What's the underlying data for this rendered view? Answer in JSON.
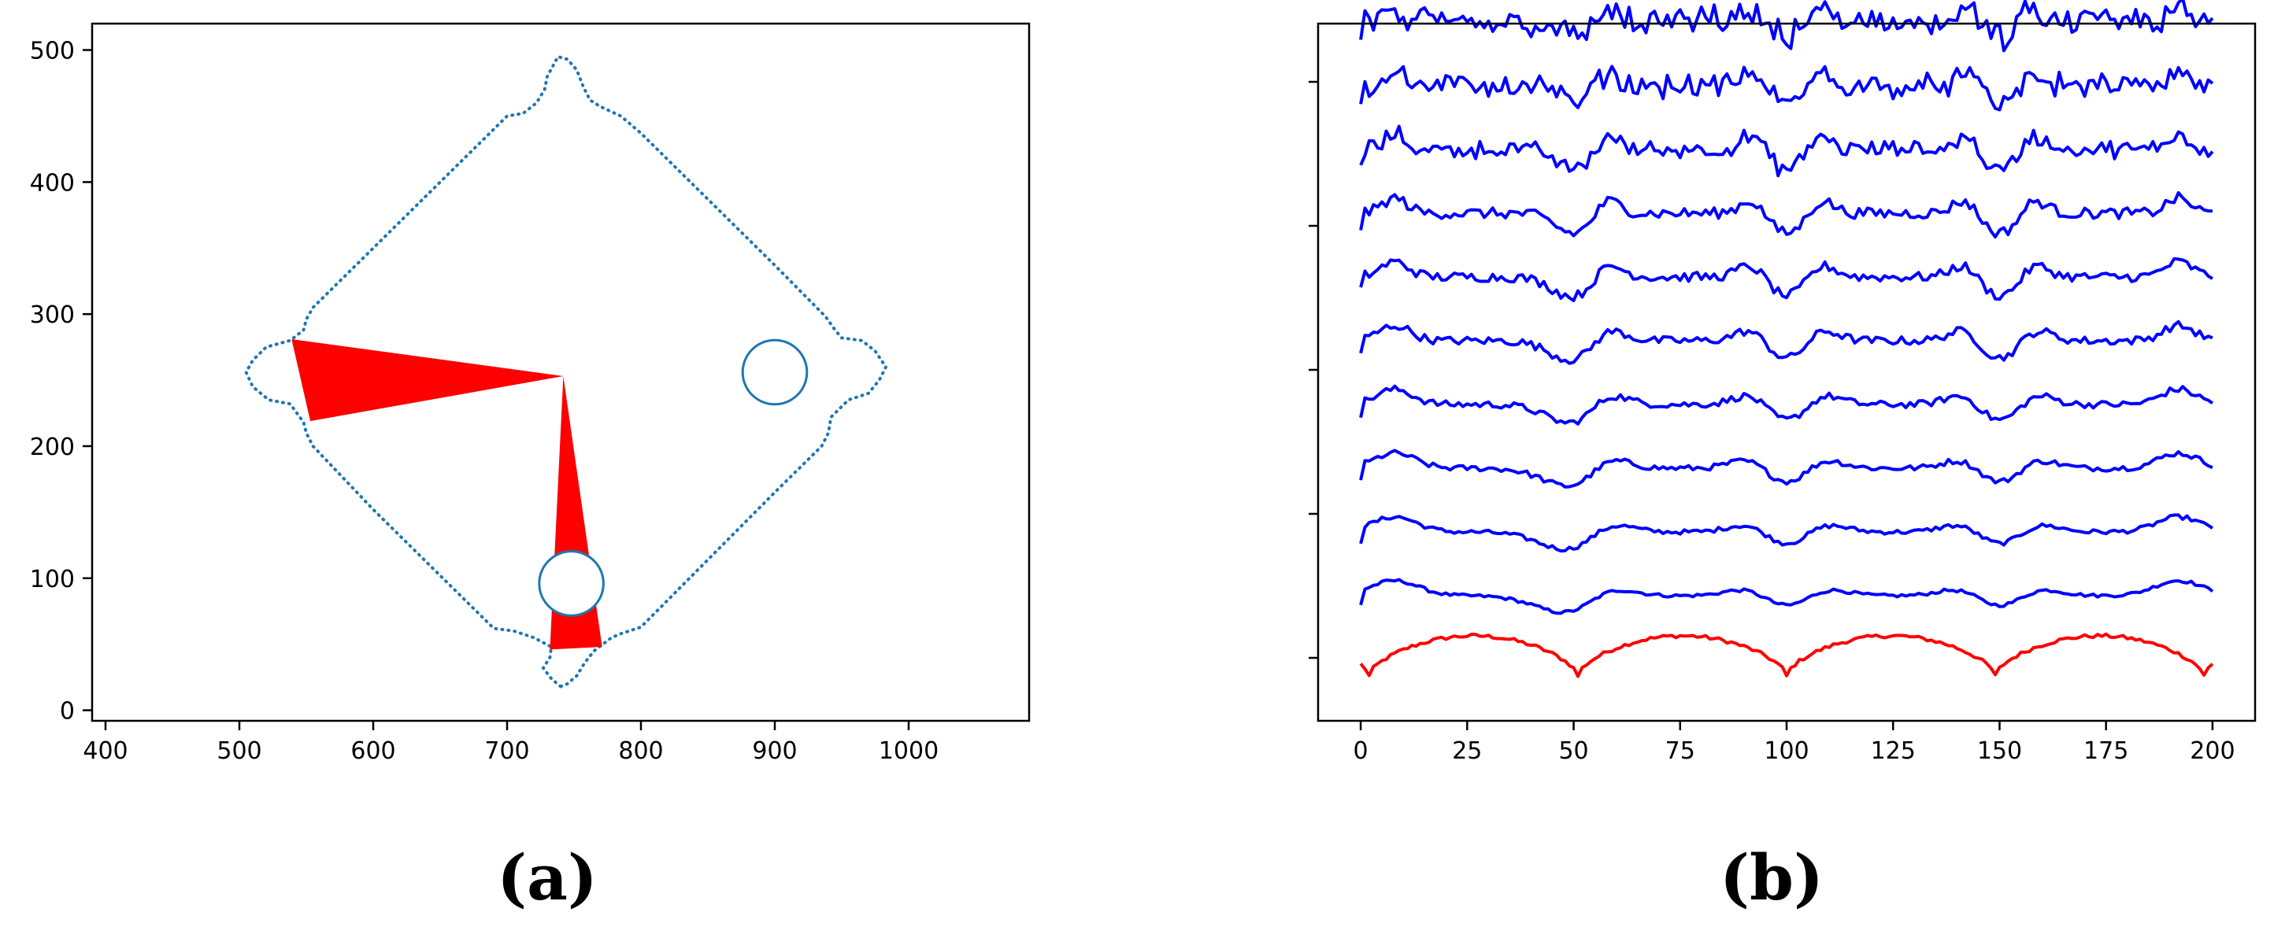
{
  "chart_data": [
    {
      "type": "scatter",
      "panel_label": "(a)",
      "xlim": [
        390,
        1090
      ],
      "ylim": [
        -8,
        520
      ],
      "x_ticks": [
        400,
        500,
        600,
        700,
        800,
        900,
        1000
      ],
      "y_ticks": [
        0,
        100,
        200,
        300,
        400,
        500
      ],
      "boundary": {
        "style": "dotted",
        "color": "#1f77b4",
        "points": [
          [
            740,
            18
          ],
          [
            733,
            24
          ],
          [
            727,
            32
          ],
          [
            732,
            40
          ],
          [
            733,
            48
          ],
          [
            720,
            55
          ],
          [
            705,
            60
          ],
          [
            690,
            62
          ],
          [
            600,
            152
          ],
          [
            555,
            200
          ],
          [
            550,
            210
          ],
          [
            548,
            218
          ],
          [
            538,
            232
          ],
          [
            522,
            235
          ],
          [
            510,
            245
          ],
          [
            505,
            256
          ],
          [
            510,
            265
          ],
          [
            520,
            275
          ],
          [
            538,
            280
          ],
          [
            548,
            288
          ],
          [
            550,
            296
          ],
          [
            555,
            305
          ],
          [
            600,
            350
          ],
          [
            700,
            450
          ],
          [
            712,
            452
          ],
          [
            722,
            460
          ],
          [
            728,
            470
          ],
          [
            730,
            480
          ],
          [
            738,
            495
          ],
          [
            745,
            493
          ],
          [
            752,
            485
          ],
          [
            757,
            472
          ],
          [
            762,
            462
          ],
          [
            770,
            457
          ],
          [
            785,
            450
          ],
          [
            800,
            437
          ],
          [
            900,
            337
          ],
          [
            938,
            298
          ],
          [
            945,
            288
          ],
          [
            950,
            282
          ],
          [
            965,
            280
          ],
          [
            975,
            272
          ],
          [
            983,
            260
          ],
          [
            978,
            250
          ],
          [
            970,
            240
          ],
          [
            955,
            235
          ],
          [
            942,
            222
          ],
          [
            940,
            210
          ],
          [
            935,
            200
          ],
          [
            900,
            165
          ],
          [
            800,
            63
          ],
          [
            785,
            58
          ],
          [
            778,
            55
          ],
          [
            765,
            45
          ],
          [
            758,
            36
          ],
          [
            752,
            26
          ],
          [
            745,
            20
          ],
          [
            740,
            18
          ]
        ]
      },
      "circles": [
        {
          "cx": 900,
          "cy": 256,
          "r": 24,
          "color": "#1f77b4"
        },
        {
          "cx": 748,
          "cy": 96,
          "r": 24,
          "color": "#1f77b4"
        }
      ],
      "wedges": [
        {
          "color": "#ff0000",
          "points": [
            [
              742,
              253
            ],
            [
              539,
              281
            ],
            [
              553,
              219
            ]
          ]
        },
        {
          "color": "#ff0000",
          "points": [
            [
              742,
              253
            ],
            [
              732,
              46
            ],
            [
              771,
              48
            ]
          ]
        }
      ]
    },
    {
      "type": "line",
      "panel_label": "(b)",
      "xlim": [
        -10,
        210
      ],
      "x_ticks": [
        0,
        25,
        50,
        75,
        100,
        125,
        150,
        175,
        200
      ],
      "x_range": [
        0,
        200
      ],
      "y_tick_count": 5,
      "series_count": 11,
      "bottom_color": "#ff0000",
      "other_color": "#0000ff",
      "bottom_series_envelope": "four arches peaking near x=25, 75, 125, 175 with minima near x=52, 100, 148, 198",
      "dips": [
        50,
        100,
        150
      ],
      "bumps": [
        8,
        58,
        92,
        108,
        142,
        158,
        192
      ]
    }
  ]
}
